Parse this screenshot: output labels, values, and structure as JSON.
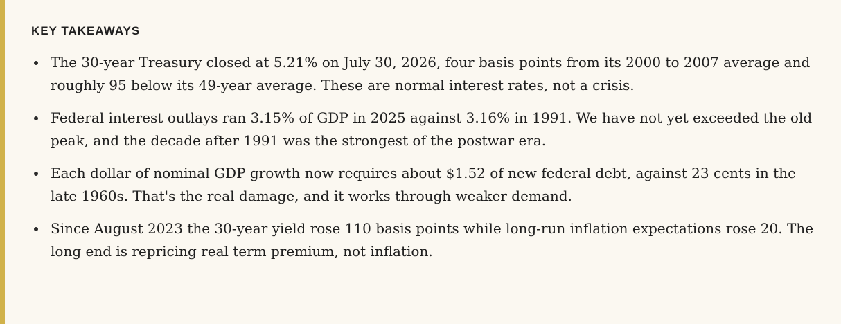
{
  "colors": {
    "accent_border": "#d1b24a",
    "background": "#fbf8f1",
    "text": "#1f1f1f"
  },
  "takeaways": {
    "heading": "KEY TAKEAWAYS",
    "items": [
      {
        "text": "The 30-year Treasury closed at 5.21% on July 30, 2026, four basis points from its 2000 to 2007 average and roughly 95 below its 49-year average. These are normal interest rates, not a crisis."
      },
      {
        "text": "Federal interest outlays ran 3.15% of GDP in 2025 against 3.16% in 1991. We have not yet exceeded the old peak, and the decade after 1991 was the strongest of the postwar era."
      },
      {
        "text": "Each dollar of nominal GDP growth now requires about $1.52 of new federal debt, against 23 cents in the late 1960s. That's the real damage, and it works through weaker demand."
      },
      {
        "text": "Since August 2023 the 30-year yield rose 110 basis points while long-run inflation expectations rose 20. The long end is repricing real term premium, not inflation."
      }
    ]
  }
}
